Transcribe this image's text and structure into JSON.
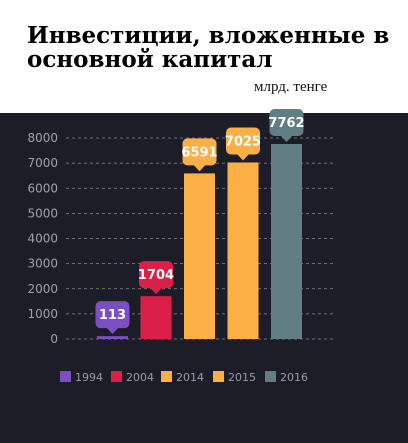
{
  "header": {
    "title": "Инвестиции, вложенные в основной капитал",
    "unit": "млрд. тенге"
  },
  "chart_data": {
    "type": "bar",
    "title": "Инвестиции, вложенные в основной капитал",
    "ylabel": "млрд. тенге",
    "categories": [
      "1994",
      "2004",
      "2014",
      "2015",
      "2016"
    ],
    "values": [
      113,
      1704,
      6591,
      7025,
      7762
    ],
    "colors": [
      "#7a4fc4",
      "#dc1f48",
      "#fbaf45",
      "#fbaf45",
      "#617e82"
    ],
    "ylim": [
      0,
      8000
    ],
    "yticks": [
      "0",
      "1000",
      "2000",
      "3000",
      "4000",
      "5000",
      "6000",
      "7000",
      "8000"
    ],
    "grid": true,
    "legend_position": "bottom",
    "data_labels": true
  }
}
